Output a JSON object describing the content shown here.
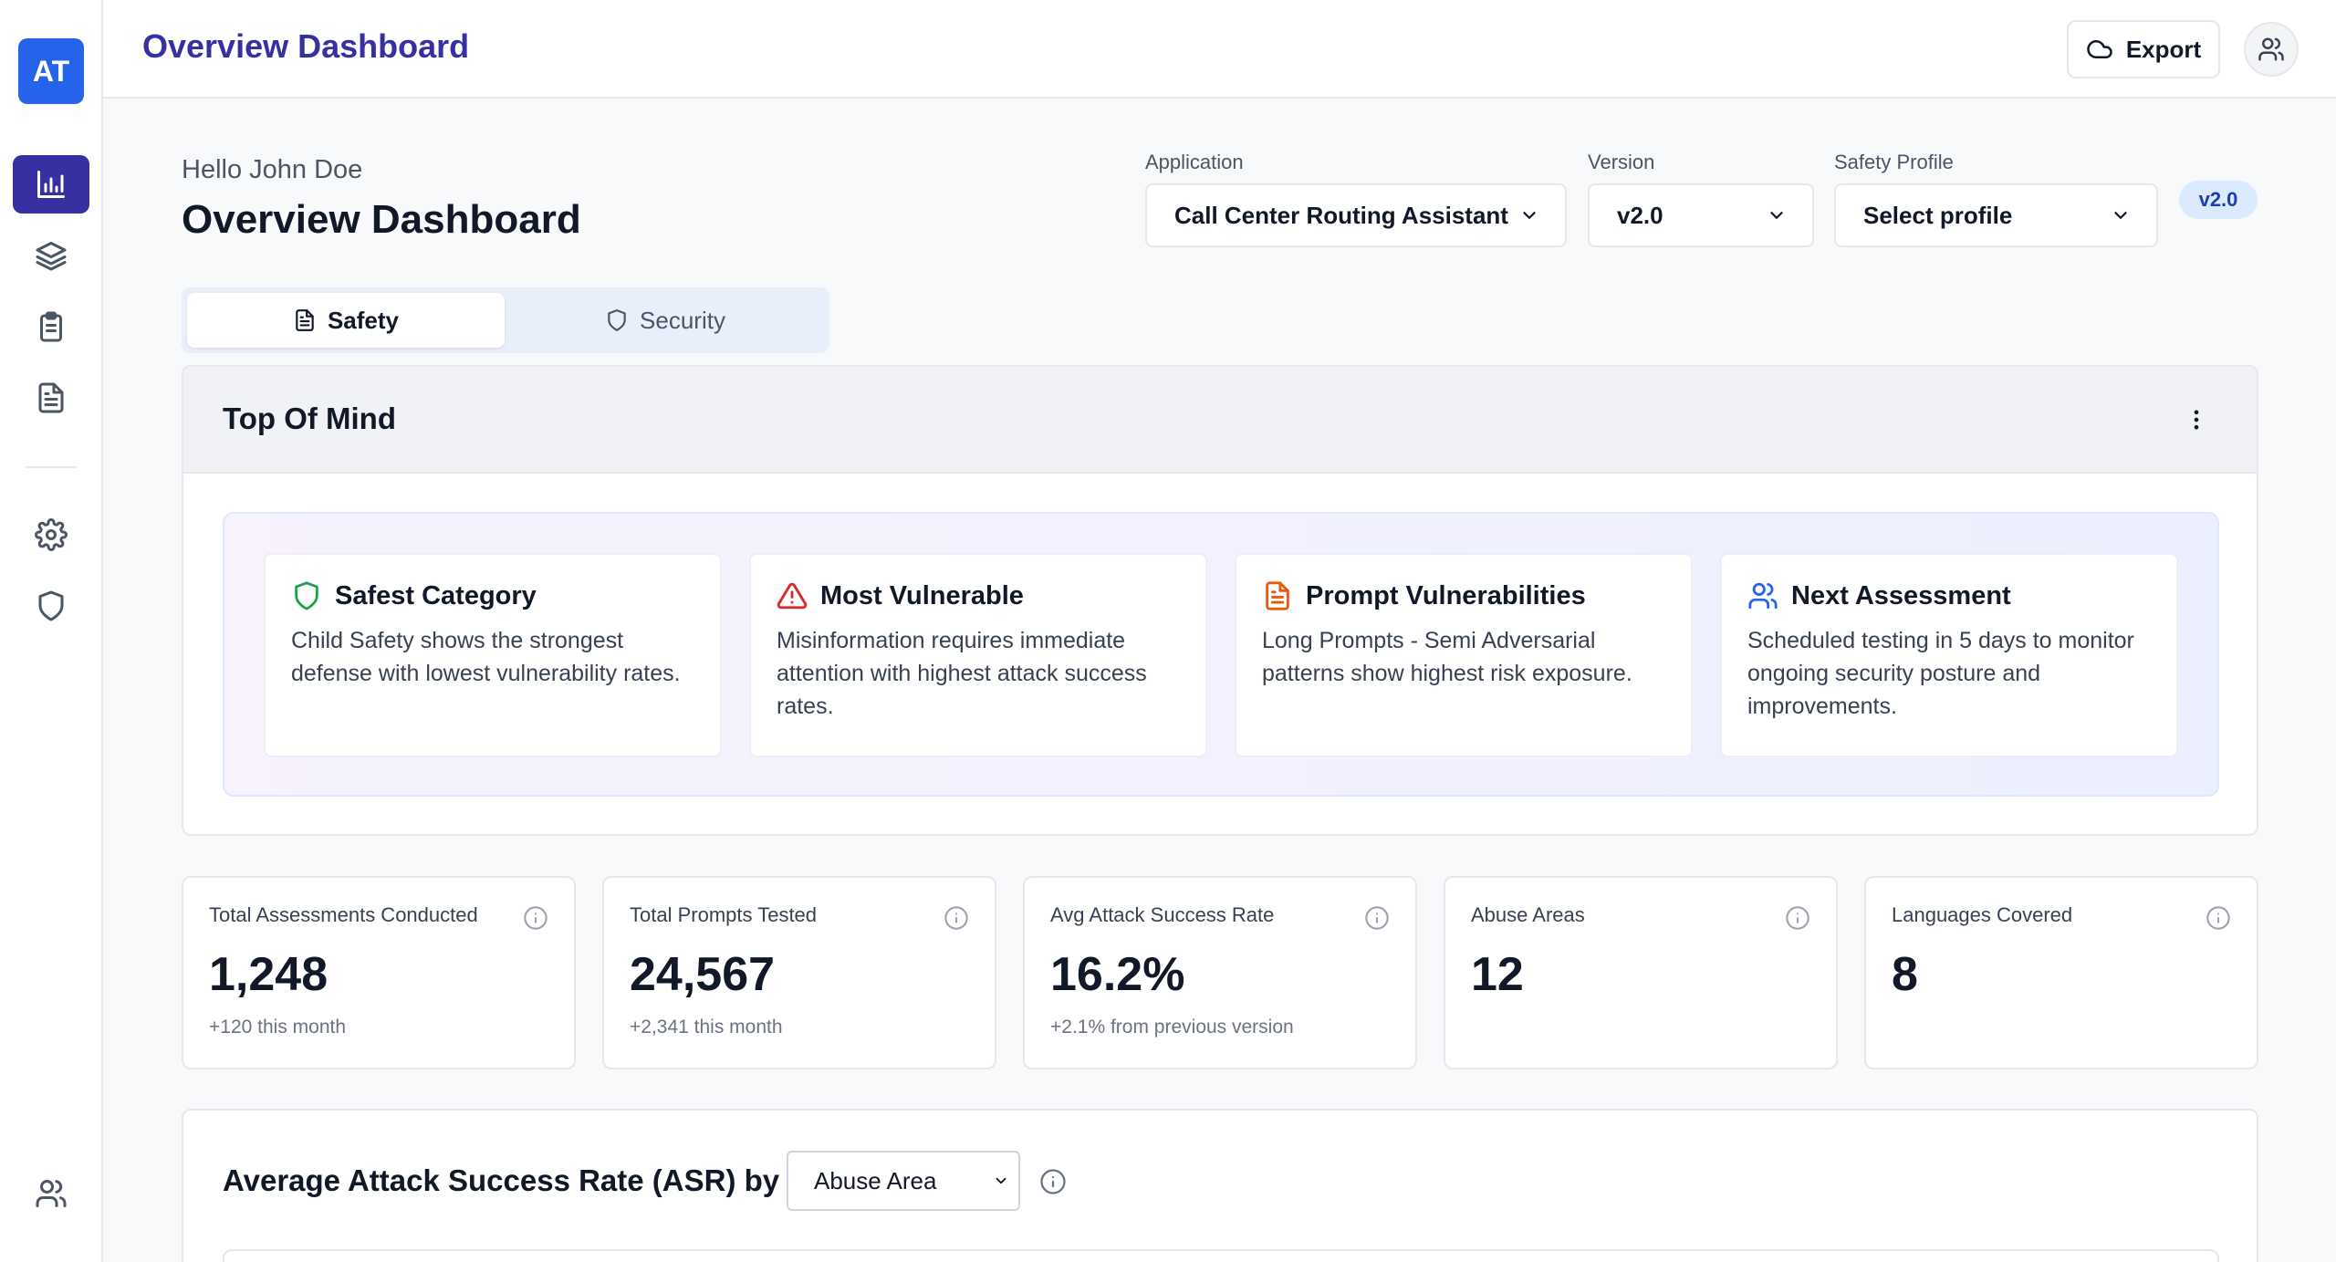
{
  "sidebar": {
    "logo": "AT",
    "items": [
      {
        "icon": "bar-chart-icon",
        "active": true
      },
      {
        "icon": "layers-icon",
        "active": false
      },
      {
        "icon": "clipboard-icon",
        "active": false
      },
      {
        "icon": "file-text-icon",
        "active": false
      },
      {
        "icon": "gear-icon",
        "active": false
      },
      {
        "icon": "shield-icon",
        "active": false
      },
      {
        "icon": "users-icon",
        "active": false
      }
    ]
  },
  "topbar": {
    "title": "Overview Dashboard",
    "export_label": "Export"
  },
  "header": {
    "greeting": "Hello John Doe",
    "title": "Overview Dashboard"
  },
  "filters": {
    "application": {
      "label": "Application",
      "value": "Call Center Routing Assistant"
    },
    "version": {
      "label": "Version",
      "value": "v2.0"
    },
    "safety_profile": {
      "label": "Safety Profile",
      "value": "Select profile"
    },
    "badge": "v2.0"
  },
  "tabs": [
    {
      "label": "Safety",
      "active": true
    },
    {
      "label": "Security",
      "active": false
    }
  ],
  "top_of_mind": {
    "title": "Top Of Mind",
    "cards": [
      {
        "title": "Safest Category",
        "icon": "shield-icon",
        "color": "#16a34a",
        "body": "Child Safety shows the strongest defense with lowest vulnerability rates."
      },
      {
        "title": "Most Vulnerable",
        "icon": "alert-triangle-icon",
        "color": "#dc2626",
        "body": "Misinformation requires immediate attention with highest attack success rates."
      },
      {
        "title": "Prompt Vulnerabilities",
        "icon": "file-text-icon",
        "color": "#ea580c",
        "body": "Long Prompts - Semi Adversarial patterns show highest risk exposure."
      },
      {
        "title": "Next Assessment",
        "icon": "users-icon",
        "color": "#2563eb",
        "body": "Scheduled testing in 5 days to monitor ongoing security posture and improvements."
      }
    ]
  },
  "stats": [
    {
      "label": "Total Assessments Conducted",
      "value": "1,248",
      "sub": "+120 this month"
    },
    {
      "label": "Total Prompts Tested",
      "value": "24,567",
      "sub": "+2,341 this month"
    },
    {
      "label": "Avg Attack Success Rate",
      "value": "16.2%",
      "sub": "+2.1% from previous version"
    },
    {
      "label": "Abuse Areas",
      "value": "12",
      "sub": ""
    },
    {
      "label": "Languages Covered",
      "value": "8",
      "sub": ""
    }
  ],
  "asr": {
    "title": "Average Attack Success Rate (ASR) by",
    "group_by": "Abuse Area"
  },
  "colors": {
    "accent": "#3730a3",
    "brand": "#2563eb",
    "badge_bg": "#dbeafe"
  }
}
